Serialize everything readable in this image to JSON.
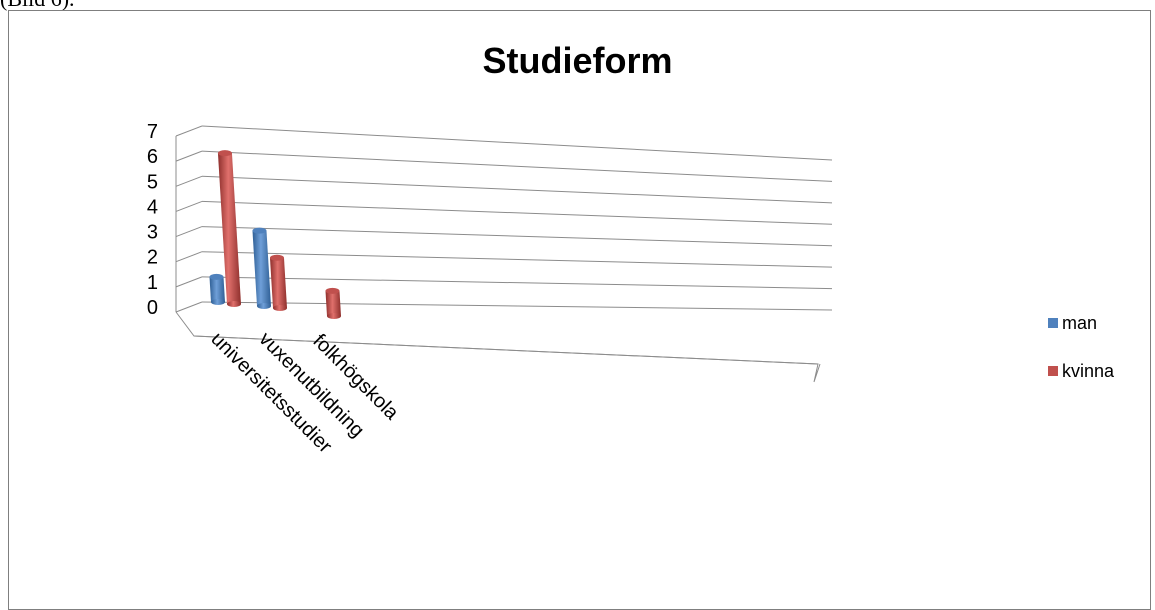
{
  "caption": "(Bild 6).",
  "chart_data": {
    "type": "bar",
    "title": "Studieform",
    "categories": [
      "universitetsstudier",
      "vuxenutbildning",
      "folkhögskola"
    ],
    "y_ticks": [
      "0",
      "1",
      "2",
      "3",
      "4",
      "5",
      "6",
      "7"
    ],
    "ylim": [
      0,
      7
    ],
    "grid": true,
    "legend_position": "right",
    "series": [
      {
        "name": "man",
        "color": "#4f81bd",
        "values": [
          1,
          3,
          0
        ]
      },
      {
        "name": "kvinna",
        "color": "#c0504d",
        "values": [
          6,
          2,
          1
        ]
      }
    ]
  }
}
